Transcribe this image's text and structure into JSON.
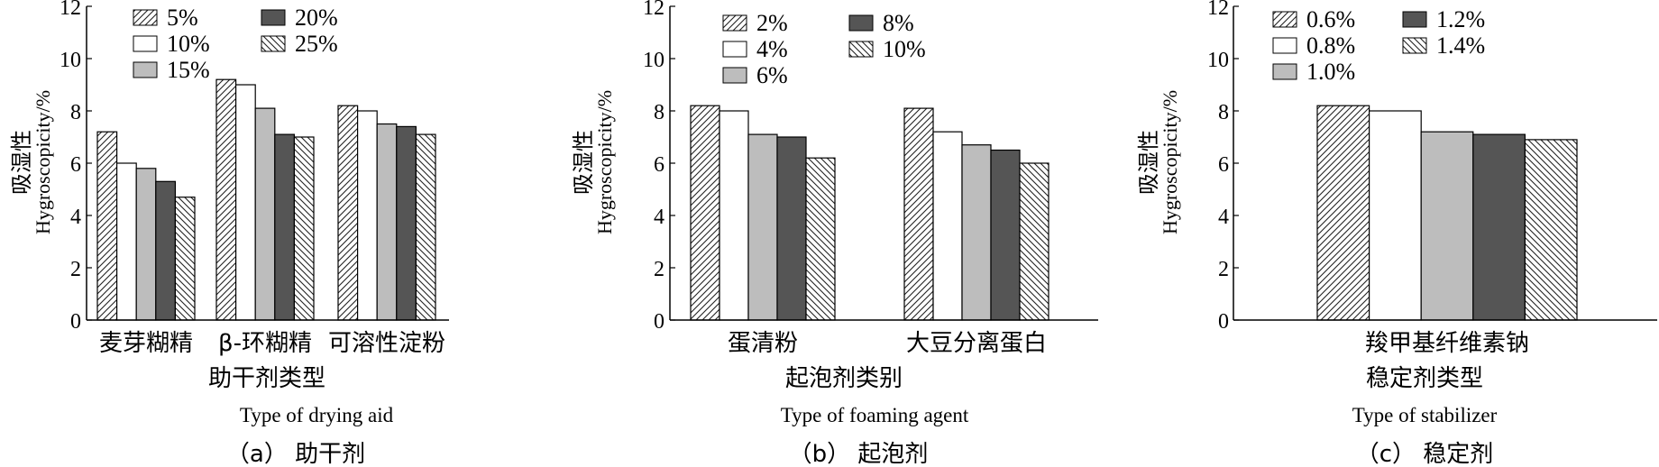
{
  "figure": {
    "panels": [
      {
        "caption": "（a） 助干剂",
        "xlabel_cn": "助干剂类型",
        "xlabel_en": "Type of drying aid",
        "ylabel_cn": "吸湿性",
        "ylabel_en": "Hygroscopicity/%",
        "yticks": [
          "0",
          "2",
          "4",
          "6",
          "8",
          "10",
          "12"
        ],
        "legend": [
          "5%",
          "10%",
          "15%",
          "20%",
          "25%"
        ]
      },
      {
        "caption": "（b） 起泡剂",
        "xlabel_cn": "起泡剂类别",
        "xlabel_en": "Type of foaming agent",
        "ylabel_cn": "吸湿性",
        "ylabel_en": "Hygroscopicity/%",
        "yticks": [
          "0",
          "2",
          "4",
          "6",
          "8",
          "10",
          "12"
        ],
        "legend": [
          "2%",
          "4%",
          "6%",
          "8%",
          "10%"
        ]
      },
      {
        "caption": "（c） 稳定剂",
        "xlabel_cn": "稳定剂类型",
        "xlabel_en": "Type of stabilizer",
        "ylabel_cn": "吸湿性",
        "ylabel_en": "Hygroscopicity/%",
        "yticks": [
          "0",
          "2",
          "4",
          "6",
          "8",
          "10",
          "12"
        ],
        "legend": [
          "0.6%",
          "0.8%",
          "1.0%",
          "1.2%",
          "1.4%"
        ]
      }
    ]
  },
  "chart_data": [
    {
      "type": "bar",
      "ylim": [
        0,
        12
      ],
      "grid": false,
      "legend_position": "top-left",
      "categories": [
        "麦芽糊精",
        "β-环糊精",
        "可溶性淀粉"
      ],
      "series": [
        {
          "name": "5%",
          "style": "hatch-forward",
          "values": [
            7.2,
            9.2,
            8.2
          ]
        },
        {
          "name": "10%",
          "style": "white",
          "values": [
            6.0,
            9.0,
            8.0
          ]
        },
        {
          "name": "15%",
          "style": "light-gray",
          "values": [
            5.8,
            8.1,
            7.5
          ]
        },
        {
          "name": "20%",
          "style": "dark-gray",
          "values": [
            5.3,
            7.1,
            7.4
          ]
        },
        {
          "name": "25%",
          "style": "hatch-back",
          "values": [
            4.7,
            7.0,
            7.1
          ]
        }
      ]
    },
    {
      "type": "bar",
      "ylim": [
        0,
        12
      ],
      "grid": false,
      "legend_position": "top-left",
      "categories": [
        "蛋清粉",
        "大豆分离蛋白"
      ],
      "series": [
        {
          "name": "2%",
          "style": "hatch-forward",
          "values": [
            8.2,
            8.1
          ]
        },
        {
          "name": "4%",
          "style": "white",
          "values": [
            8.0,
            7.2
          ]
        },
        {
          "name": "6%",
          "style": "light-gray",
          "values": [
            7.1,
            6.7
          ]
        },
        {
          "name": "8%",
          "style": "dark-gray",
          "values": [
            7.0,
            6.5
          ]
        },
        {
          "name": "10%",
          "style": "hatch-back",
          "values": [
            6.2,
            6.0
          ]
        }
      ]
    },
    {
      "type": "bar",
      "ylim": [
        0,
        12
      ],
      "grid": false,
      "legend_position": "top-left",
      "categories": [
        "羧甲基纤维素钠"
      ],
      "series": [
        {
          "name": "0.6%",
          "style": "hatch-forward",
          "values": [
            8.2
          ]
        },
        {
          "name": "0.8%",
          "style": "white",
          "values": [
            8.0
          ]
        },
        {
          "name": "1.0%",
          "style": "light-gray",
          "values": [
            7.2
          ]
        },
        {
          "name": "1.2%",
          "style": "dark-gray",
          "values": [
            7.1
          ]
        },
        {
          "name": "1.4%",
          "style": "hatch-back",
          "values": [
            6.9
          ]
        }
      ]
    }
  ]
}
